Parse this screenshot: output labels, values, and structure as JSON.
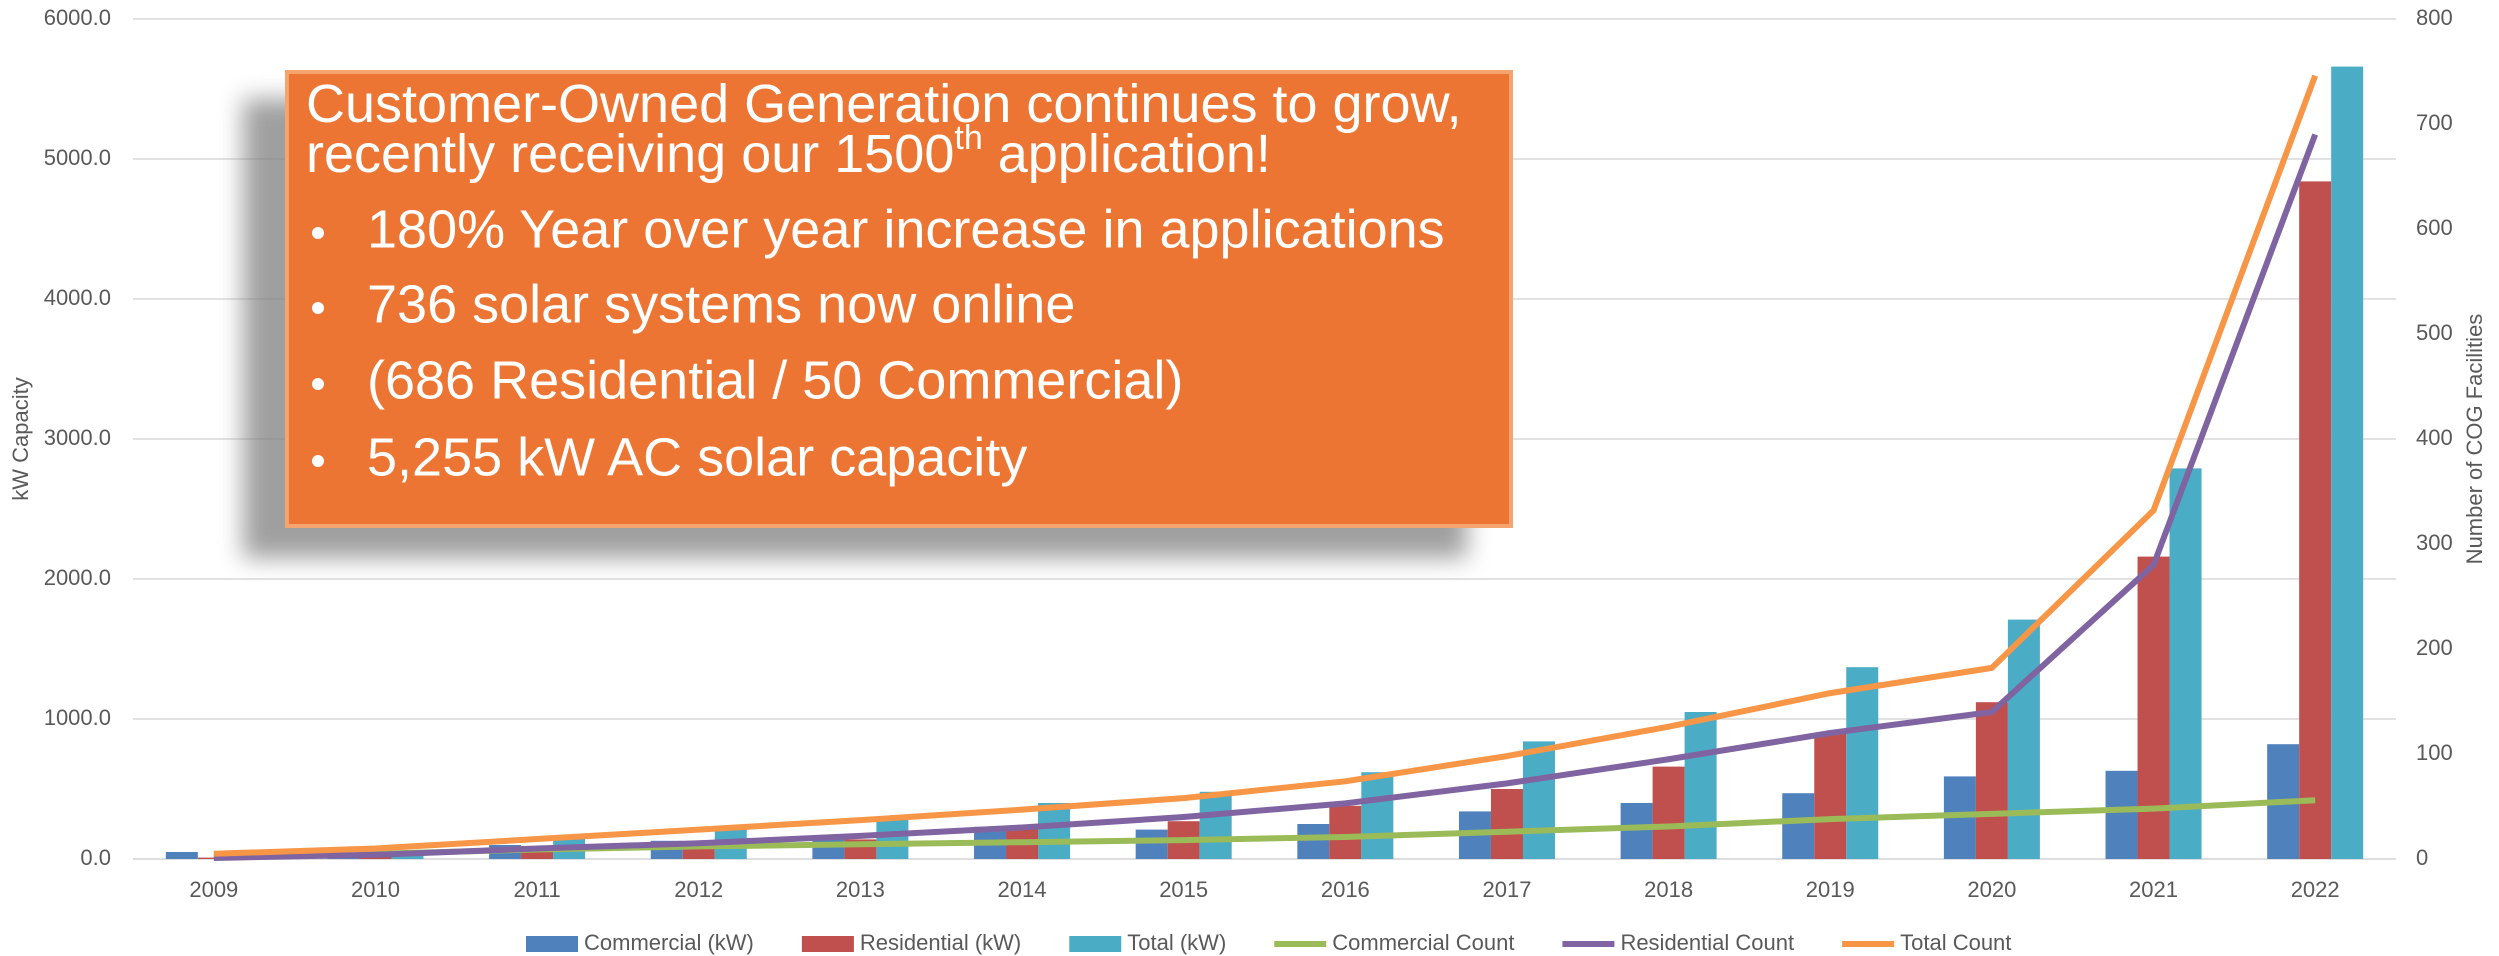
{
  "chart_data": {
    "type": "bar",
    "categories": [
      "2009",
      "2010",
      "2011",
      "2012",
      "2013",
      "2014",
      "2015",
      "2016",
      "2017",
      "2018",
      "2019",
      "2020",
      "2021",
      "2022"
    ],
    "series": [
      {
        "name": "Commercial (kW)",
        "color": "#4f81bd",
        "values": [
          50,
          30,
          100,
          130,
          160,
          230,
          210,
          250,
          340,
          400,
          470,
          590,
          630,
          820
        ]
      },
      {
        "name": "Residential (kW)",
        "color": "#c0504d",
        "values": [
          10,
          20,
          60,
          90,
          140,
          230,
          270,
          380,
          500,
          660,
          900,
          1120,
          2160,
          4840
        ]
      },
      {
        "name": "Total (kW)",
        "color": "#4bacc6",
        "values": [
          60,
          50,
          160,
          220,
          290,
          400,
          480,
          620,
          840,
          1050,
          1370,
          1710,
          2790,
          5660
        ]
      },
      {
        "name": "Commercial Count",
        "color": "#9bbb59",
        "type": "line",
        "axis": "y2",
        "values": [
          3,
          5,
          9,
          12,
          14,
          16,
          18,
          21,
          26,
          31,
          38,
          43,
          48,
          56
        ]
      },
      {
        "name": "Residential Count",
        "color": "#8064a2",
        "type": "line",
        "axis": "y2",
        "values": [
          1,
          4,
          10,
          15,
          22,
          30,
          40,
          53,
          72,
          95,
          120,
          140,
          280,
          690
        ]
      },
      {
        "name": "Total Count",
        "color": "#f79646",
        "type": "line",
        "axis": "y2",
        "values": [
          5,
          10,
          19,
          28,
          37,
          47,
          58,
          74,
          98,
          126,
          158,
          182,
          332,
          746
        ]
      }
    ],
    "ylabel": "kW Capacity",
    "y2label": "Number of COG Facilities",
    "ylim": [
      0,
      6000
    ],
    "yticks": [
      {
        "value": 0,
        "label": "0.0"
      },
      {
        "value": 1000,
        "label": "1000.0"
      },
      {
        "value": 2000,
        "label": "2000.0"
      },
      {
        "value": 3000,
        "label": "3000.0"
      },
      {
        "value": 4000,
        "label": "4000.0"
      },
      {
        "value": 5000,
        "label": "5000.0"
      },
      {
        "value": 6000,
        "label": "6000.0"
      }
    ],
    "y2lim": [
      0,
      800
    ],
    "y2ticks": [
      0,
      100,
      200,
      300,
      400,
      500,
      600,
      700,
      800
    ],
    "grid": true,
    "legend": "bottom",
    "annotation": {
      "title": [
        "Customer-Owned Generation continues to grow,",
        "recently receiving our 1500",
        "th",
        " application!"
      ],
      "bullets": [
        "180% Year over year increase in applications",
        "736 solar systems now online",
        "(686 Residential / 50 Commercial)",
        "5,255 kW AC solar capacity"
      ]
    }
  }
}
